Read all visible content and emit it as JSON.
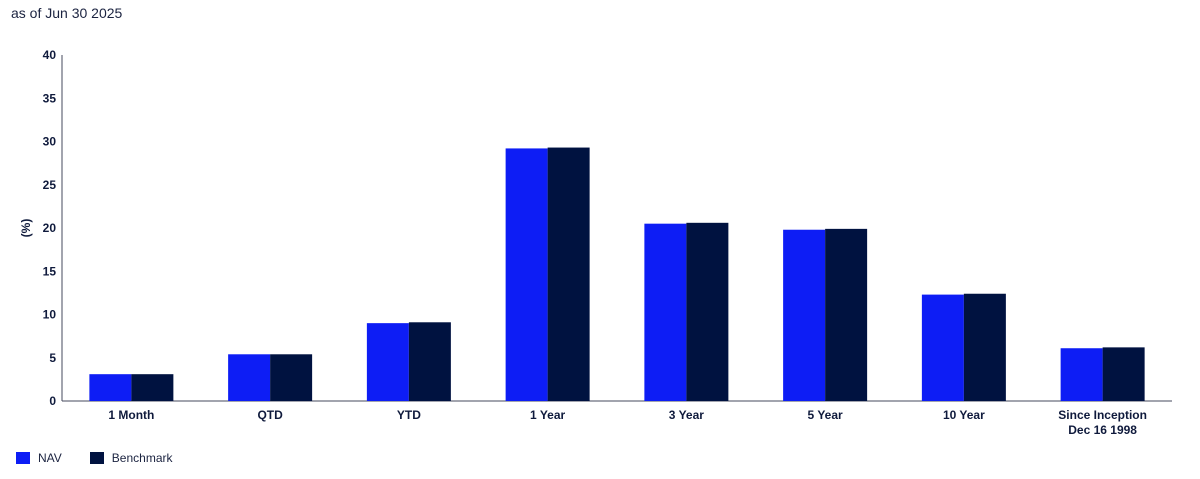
{
  "subtitle": "as of Jun 30 2025",
  "chart_data": {
    "type": "bar",
    "ylabel": "(%)",
    "ylim": [
      0,
      40
    ],
    "yticks": [
      0,
      5,
      10,
      15,
      20,
      25,
      30,
      35,
      40
    ],
    "categories": [
      "1 Month",
      "QTD",
      "YTD",
      "1 Year",
      "3 Year",
      "5 Year",
      "10 Year",
      "Since Inception\nDec 16 1998"
    ],
    "series": [
      {
        "name": "NAV",
        "color": "#0d1df5",
        "values": [
          3.1,
          5.4,
          9.0,
          29.2,
          20.5,
          19.8,
          12.3,
          6.1
        ]
      },
      {
        "name": "Benchmark",
        "color": "#001240",
        "values": [
          3.1,
          5.4,
          9.1,
          29.3,
          20.6,
          19.9,
          12.4,
          6.2
        ]
      }
    ],
    "grid": false,
    "legend": "bottom-left"
  }
}
